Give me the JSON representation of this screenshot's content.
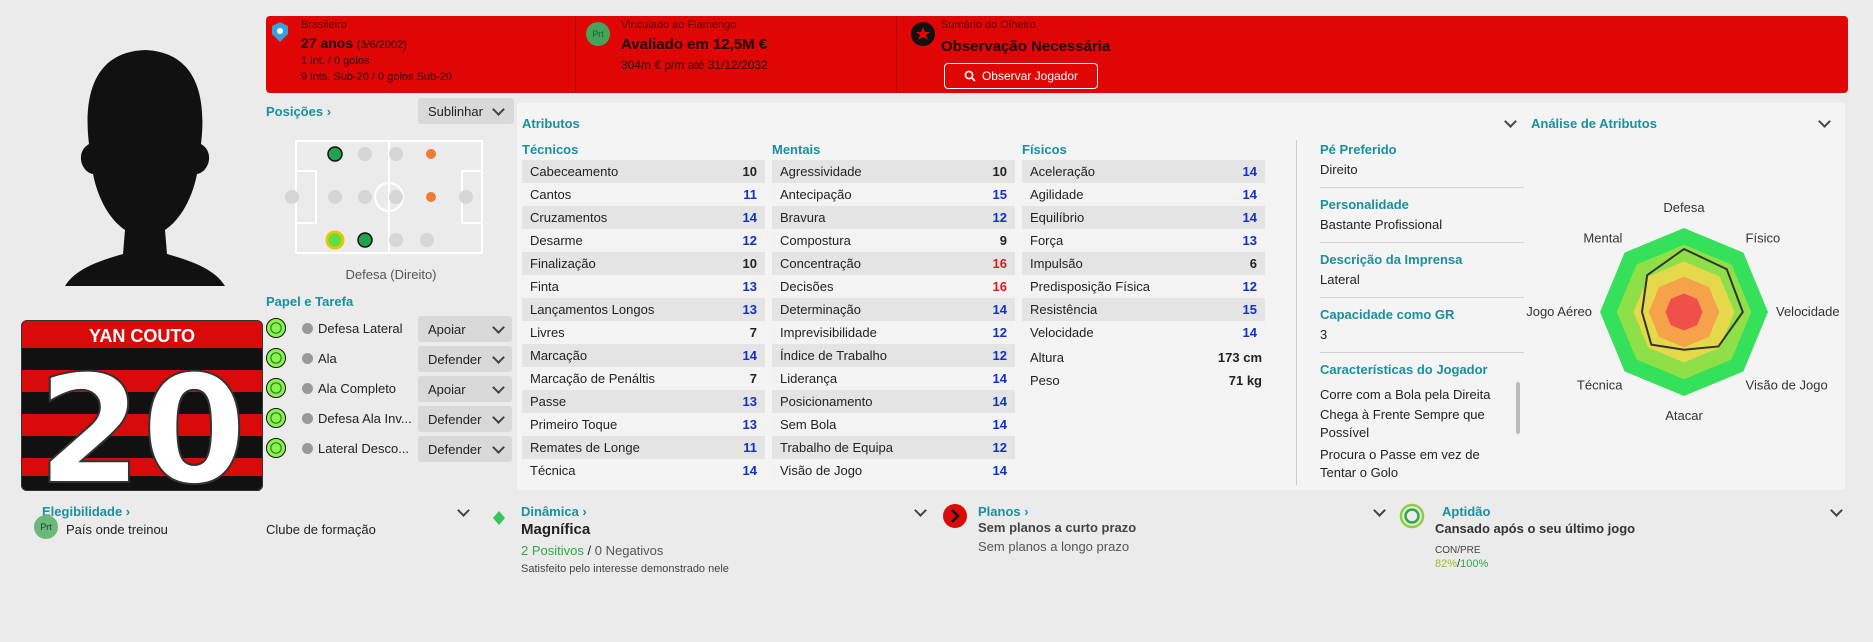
{
  "header": {
    "nationality": {
      "label": "Brasileiro",
      "age": "27 anos",
      "dob": "(3/6/2002)",
      "caps": "1 int. / 0 golos",
      "youth_caps": "9 ints. Sub-20 / 0 golos Sub-20"
    },
    "contract": {
      "label": "Vinculado ao Flamengo",
      "badge": "Prt",
      "value": "Avaliado em 12,5M €",
      "wage": "304m € p/m até 31/12/2032"
    },
    "scout": {
      "label": "Sumário do Olheiro",
      "status": "Observação Necessária",
      "button": "Observar Jogador"
    }
  },
  "player": {
    "name": "YAN COUTO",
    "number": "20"
  },
  "positions": {
    "title": "Posições",
    "button": "Sublinhar",
    "caption": "Defesa (Direito)"
  },
  "roles": {
    "title": "Papel e Tarefa",
    "items": [
      {
        "role": "Defesa Lateral",
        "duty": "Apoiar"
      },
      {
        "role": "Ala",
        "duty": "Defender"
      },
      {
        "role": "Ala Completo",
        "duty": "Apoiar"
      },
      {
        "role": "Defesa Ala Inv...",
        "duty": "Defender"
      },
      {
        "role": "Lateral Desco...",
        "duty": "Defender"
      }
    ]
  },
  "attributes": {
    "title": "Atributos",
    "groups": [
      {
        "title": "Técnicos",
        "rows": [
          [
            "Cabeceamento",
            10
          ],
          [
            "Cantos",
            11
          ],
          [
            "Cruzamentos",
            14
          ],
          [
            "Desarme",
            12
          ],
          [
            "Finalização",
            10
          ],
          [
            "Finta",
            13
          ],
          [
            "Lançamentos Longos",
            13
          ],
          [
            "Livres",
            7
          ],
          [
            "Marcação",
            14
          ],
          [
            "Marcação de Penáltis",
            7
          ],
          [
            "Passe",
            13
          ],
          [
            "Primeiro Toque",
            13
          ],
          [
            "Remates de Longe",
            11
          ],
          [
            "Técnica",
            14
          ]
        ]
      },
      {
        "title": "Mentais",
        "rows": [
          [
            "Agressividade",
            10
          ],
          [
            "Antecipação",
            15
          ],
          [
            "Bravura",
            12
          ],
          [
            "Compostura",
            9
          ],
          [
            "Concentração",
            16
          ],
          [
            "Decisões",
            16
          ],
          [
            "Determinação",
            14
          ],
          [
            "Imprevisibilidade",
            12
          ],
          [
            "Índice de Trabalho",
            12
          ],
          [
            "Liderança",
            14
          ],
          [
            "Posicionamento",
            14
          ],
          [
            "Sem Bola",
            14
          ],
          [
            "Trabalho de Equipa",
            12
          ],
          [
            "Visão de Jogo",
            14
          ]
        ]
      },
      {
        "title": "Físicos",
        "rows": [
          [
            "Aceleração",
            14
          ],
          [
            "Agilidade",
            14
          ],
          [
            "Equilíbrio",
            14
          ],
          [
            "Força",
            13
          ],
          [
            "Impulsão",
            6
          ],
          [
            "Predisposição Física",
            12
          ],
          [
            "Resistência",
            15
          ],
          [
            "Velocidade",
            14
          ]
        ]
      }
    ],
    "body": [
      [
        "Altura",
        "173 cm"
      ],
      [
        "Peso",
        "71 kg"
      ]
    ]
  },
  "info": [
    {
      "label": "Pé Preferido",
      "value": "Direito"
    },
    {
      "label": "Personalidade",
      "value": "Bastante Profissional"
    },
    {
      "label": "Descrição da Imprensa",
      "value": "Lateral"
    },
    {
      "label": "Capacidade como GR",
      "value": "3"
    }
  ],
  "traits": {
    "title": "Características do Jogador",
    "items": [
      "Corre com a Bola pela Direita",
      "Chega à Frente Sempre que Possível",
      "Procura o Passe em vez de Tentar o Golo"
    ]
  },
  "analysis": {
    "title": "Análise de Atributos",
    "labels": [
      "Defesa",
      "Físico",
      "Velocidade",
      "Visão de Jogo",
      "Atacar",
      "Técnica",
      "Jogo Aéreo",
      "Mental"
    ]
  },
  "eligibility": {
    "title": "Elegibilidade",
    "badge": "Prt",
    "trained_in": "País onde treinou",
    "youth_club": "Clube de formação"
  },
  "dynamics": {
    "title": "Dinâmica",
    "status": "Magnífica",
    "positives": "2 Positivos",
    "divider": "/",
    "negatives": "0 Negativos",
    "note": "Satisfeito pelo interesse demonstrado nele"
  },
  "plans": {
    "title": "Planos",
    "short": "Sem planos a curto prazo",
    "long": "Sem planos a longo prazo"
  },
  "fitness": {
    "title": "Aptidão",
    "status": "Cansado após o seu último jogo",
    "label": "CON/PRE",
    "condition": "82%",
    "divider": "/",
    "sharpness": "100%"
  }
}
